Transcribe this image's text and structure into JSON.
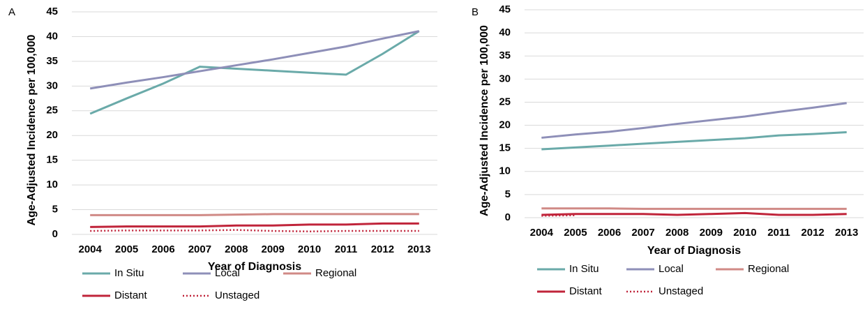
{
  "chart_data": [
    {
      "type": "line",
      "panel": "A",
      "y_label": "Age-Adjusted Incidence per 100,000",
      "x_label": "Year of Diagnosis",
      "categories": [
        "2004",
        "2005",
        "2006",
        "2007",
        "2008",
        "2009",
        "2010",
        "2011",
        "2012",
        "2013"
      ],
      "ylim": [
        0,
        45
      ],
      "yticks": [
        0,
        5,
        10,
        15,
        20,
        25,
        30,
        35,
        40,
        45
      ],
      "grid": true,
      "series": [
        {
          "name": "In Situ",
          "color": "#6aaaa9",
          "style": "solid",
          "values": [
            24.4,
            27.5,
            30.5,
            33.9,
            33.5,
            33.1,
            32.7,
            32.3,
            36.5,
            41.1
          ]
        },
        {
          "name": "Local",
          "color": "#8e8fb8",
          "style": "solid",
          "values": [
            29.5,
            30.7,
            31.8,
            33.0,
            34.2,
            35.4,
            36.7,
            38.0,
            39.6,
            41.1
          ]
        },
        {
          "name": "Regional",
          "color": "#d08a86",
          "style": "solid",
          "values": [
            3.9,
            3.9,
            3.9,
            3.9,
            4.0,
            4.1,
            4.1,
            4.1,
            4.1,
            4.1
          ]
        },
        {
          "name": "Distant",
          "color": "#c0243a",
          "style": "solid",
          "values": [
            1.5,
            1.6,
            1.6,
            1.6,
            1.8,
            1.8,
            2.0,
            2.0,
            2.2,
            2.2
          ]
        },
        {
          "name": "Unstaged",
          "color": "#c0243a",
          "style": "dotted",
          "values": [
            0.7,
            0.8,
            0.8,
            0.8,
            0.9,
            0.7,
            0.6,
            0.7,
            0.7,
            0.7
          ]
        }
      ]
    },
    {
      "type": "line",
      "panel": "B",
      "y_label": "Age-Adjusted Incidence per 100,000",
      "x_label": "Year of Diagnosis",
      "categories": [
        "2004",
        "2005",
        "2006",
        "2007",
        "2008",
        "2009",
        "2010",
        "2011",
        "2012",
        "2013"
      ],
      "ylim": [
        0,
        45
      ],
      "yticks": [
        0,
        5,
        10,
        15,
        20,
        25,
        30,
        35,
        40,
        45
      ],
      "grid": true,
      "series": [
        {
          "name": "In Situ",
          "color": "#6aaaa9",
          "style": "solid",
          "values": [
            14.8,
            15.2,
            15.6,
            16.0,
            16.4,
            16.8,
            17.2,
            17.8,
            18.1,
            18.5
          ]
        },
        {
          "name": "Local",
          "color": "#8e8fb8",
          "style": "solid",
          "values": [
            17.3,
            18.0,
            18.6,
            19.4,
            20.3,
            21.1,
            21.9,
            22.9,
            23.8,
            24.8
          ]
        },
        {
          "name": "Regional",
          "color": "#d08a86",
          "style": "solid",
          "values": [
            2.0,
            2.0,
            2.0,
            1.9,
            1.9,
            1.9,
            1.9,
            1.9,
            1.9,
            1.9
          ]
        },
        {
          "name": "Distant",
          "color": "#c0243a",
          "style": "solid",
          "values": [
            0.6,
            0.8,
            0.8,
            0.8,
            0.6,
            0.8,
            1.0,
            0.6,
            0.6,
            0.8
          ]
        },
        {
          "name": "Unstaged",
          "color": "#c0243a",
          "style": "dotted",
          "values": [
            0.4,
            0.5,
            null,
            null,
            null,
            null,
            null,
            null,
            null,
            null
          ]
        }
      ]
    }
  ]
}
